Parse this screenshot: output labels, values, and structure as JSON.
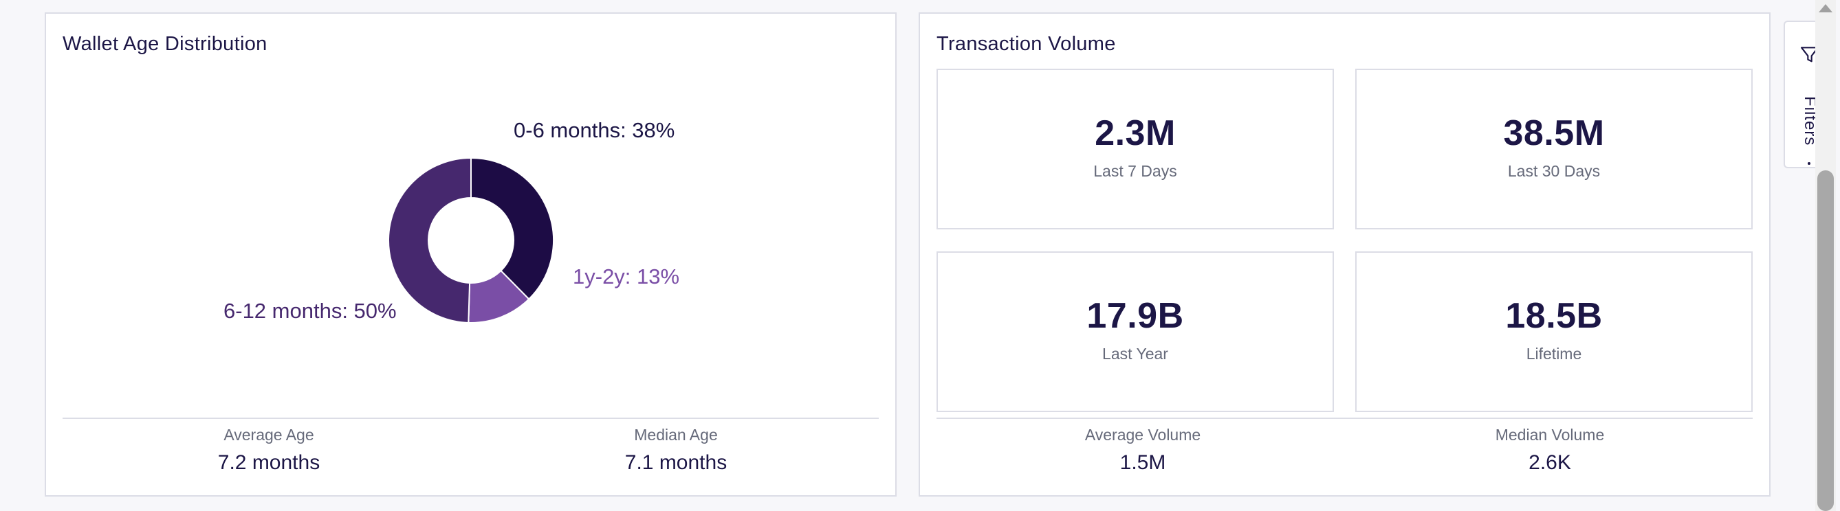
{
  "wallet_age": {
    "title": "Wallet Age Distribution",
    "chart_data": {
      "type": "pie",
      "subtype": "donut",
      "slices": [
        {
          "label": "0-6 months",
          "value": 38,
          "color": "#1d0c45"
        },
        {
          "label": "1y-2y",
          "value": 13,
          "color": "#7a4ea6"
        },
        {
          "label": "6-12 months",
          "value": 50,
          "color": "#46286e"
        }
      ]
    },
    "labels": {
      "slice_0": "0-6 months: 38%",
      "slice_1": "6-12 months: 50%",
      "slice_2": "1y-2y: 13%"
    },
    "stats": {
      "average_label": "Average Age",
      "average_value": "7.2 months",
      "median_label": "Median Age",
      "median_value": "7.1 months"
    }
  },
  "transaction_volume": {
    "title": "Transaction Volume",
    "kpis": [
      {
        "value": "2.3M",
        "label": "Last 7 Days"
      },
      {
        "value": "38.5M",
        "label": "Last 30 Days"
      },
      {
        "value": "17.9B",
        "label": "Last Year"
      },
      {
        "value": "18.5B",
        "label": "Lifetime"
      }
    ],
    "stats": {
      "average_label": "Average Volume",
      "average_value": "1.5M",
      "median_label": "Median Volume",
      "median_value": "2.6K"
    }
  },
  "filters": {
    "label": "Filters"
  },
  "colors": {
    "text_primary": "#1c1646",
    "border": "#dcdde6"
  }
}
